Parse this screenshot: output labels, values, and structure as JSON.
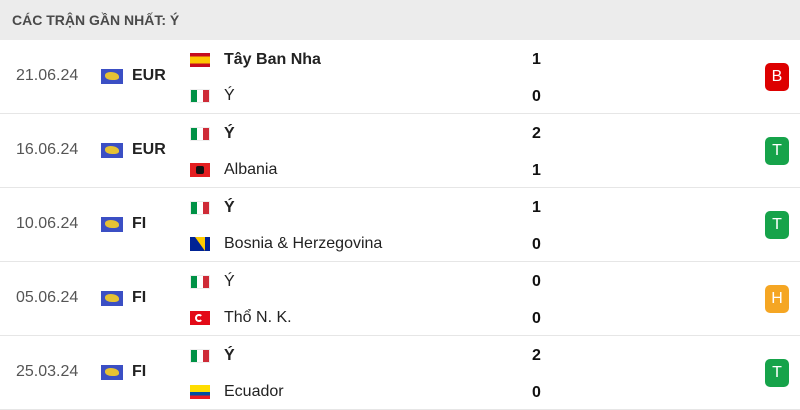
{
  "header": {
    "title": "CÁC TRẬN GẦN NHẤT: Ý"
  },
  "result_colors": {
    "B": "#dd0000",
    "T": "#16a34a",
    "H": "#f5a623"
  },
  "matches": [
    {
      "date": "21.06.24",
      "competition": "EUR",
      "home": {
        "name": "Tây Ban Nha",
        "flag": "es",
        "score": "1",
        "winner": true
      },
      "away": {
        "name": "Ý",
        "flag": "it",
        "score": "0",
        "winner": false
      },
      "result": "B"
    },
    {
      "date": "16.06.24",
      "competition": "EUR",
      "home": {
        "name": "Ý",
        "flag": "it",
        "score": "2",
        "winner": true
      },
      "away": {
        "name": "Albania",
        "flag": "al",
        "score": "1",
        "winner": false
      },
      "result": "T"
    },
    {
      "date": "10.06.24",
      "competition": "FI",
      "home": {
        "name": "Ý",
        "flag": "it",
        "score": "1",
        "winner": true
      },
      "away": {
        "name": "Bosnia & Herzegovina",
        "flag": "ba",
        "score": "0",
        "winner": false
      },
      "result": "T"
    },
    {
      "date": "05.06.24",
      "competition": "FI",
      "home": {
        "name": "Ý",
        "flag": "it",
        "score": "0",
        "winner": false
      },
      "away": {
        "name": "Thổ N. K.",
        "flag": "tr",
        "score": "0",
        "winner": false
      },
      "result": "H"
    },
    {
      "date": "25.03.24",
      "competition": "FI",
      "home": {
        "name": "Ý",
        "flag": "it",
        "score": "2",
        "winner": true
      },
      "away": {
        "name": "Ecuador",
        "flag": "ec",
        "score": "0",
        "winner": false
      },
      "result": "T"
    }
  ]
}
